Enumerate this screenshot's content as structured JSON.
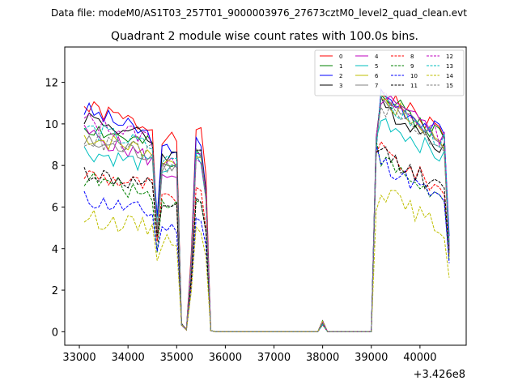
{
  "figure": {
    "header": "Data file: modeM0/AS1T03_257T01_9000003976_27673cztM0_level2_quad_clean.evt",
    "title": "Quadrant 2 module wise count rates with 100.0s bins.",
    "x_offset_label": "+3.426e8"
  },
  "chart_data": {
    "type": "line",
    "title": "Quadrant 2 module wise count rates with 100.0s bins.",
    "xlabel": "",
    "ylabel": "",
    "x_offset": 342600000,
    "xlim": [
      32700,
      40950
    ],
    "ylim": [
      -0.65,
      13.7
    ],
    "xticks": [
      33000,
      34000,
      35000,
      36000,
      37000,
      38000,
      39000,
      40000
    ],
    "xtick_labels": [
      "33000",
      "34000",
      "35000",
      "36000",
      "37000",
      "38000",
      "39000",
      "40000"
    ],
    "yticks": [
      0,
      2,
      4,
      6,
      8,
      10,
      12
    ],
    "ytick_labels": [
      "0",
      "2",
      "4",
      "6",
      "8",
      "10",
      "12"
    ],
    "grid": false,
    "legend_position": "top-right",
    "legend_columns": 4,
    "segments": [
      {
        "x_start": 33100,
        "x_end": 34600
      },
      {
        "x_start": 34600,
        "x_end": 35100
      },
      {
        "x_start": 35200,
        "x_end": 35700
      },
      {
        "x_start": 35800,
        "x_end": 35900
      },
      {
        "x_start": 36000,
        "x_end": 39000
      },
      {
        "x_start": 39100,
        "x_end": 40600
      }
    ],
    "series": [
      {
        "name": "0",
        "color": "#ff0000",
        "dash": "solid",
        "levels": [
          10.8,
          9.8,
          9.3,
          9.9,
          9.0,
          10.7
        ],
        "last": 4.2
      },
      {
        "name": "1",
        "color": "#008000",
        "dash": "solid",
        "levels": [
          9.9,
          8.9,
          7.9,
          8.8,
          9.0,
          10.5
        ],
        "last": 4.0
      },
      {
        "name": "2",
        "color": "#0000ff",
        "dash": "solid",
        "levels": [
          10.7,
          9.4,
          8.8,
          9.2,
          9.1,
          10.6
        ],
        "last": 4.6
      },
      {
        "name": "3",
        "color": "#000000",
        "dash": "solid",
        "levels": [
          10.4,
          9.2,
          8.5,
          8.9,
          9.0,
          10.0
        ],
        "last": 3.9
      },
      {
        "name": "4",
        "color": "#bf00bf",
        "dash": "solid",
        "levels": [
          9.6,
          8.3,
          7.6,
          8.6,
          9.2,
          10.4
        ],
        "last": 4.0
      },
      {
        "name": "5",
        "color": "#00bfbf",
        "dash": "solid",
        "levels": [
          8.7,
          8.0,
          7.8,
          8.4,
          9.2,
          9.3
        ],
        "last": 4.2
      },
      {
        "name": "6",
        "color": "#bfbf00",
        "dash": "solid",
        "levels": [
          9.4,
          8.7,
          8.2,
          8.6,
          9.0,
          10.3
        ],
        "last": 3.6
      },
      {
        "name": "7",
        "color": "#808080",
        "dash": "solid",
        "levels": [
          9.1,
          8.5,
          8.0,
          8.8,
          9.1,
          10.1
        ],
        "last": 3.9
      },
      {
        "name": "8",
        "color": "#ff0000",
        "dash": "dashed",
        "levels": [
          7.6,
          7.0,
          6.4,
          6.8,
          8.9,
          7.6
        ],
        "last": 3.7
      },
      {
        "name": "9",
        "color": "#008000",
        "dash": "dashed",
        "levels": [
          7.4,
          6.6,
          6.2,
          6.5,
          8.9,
          7.1
        ],
        "last": 3.4
      },
      {
        "name": "10",
        "color": "#0000ff",
        "dash": "dashed",
        "levels": [
          6.4,
          5.7,
          5.0,
          5.5,
          8.8,
          7.0
        ],
        "last": 3.3
      },
      {
        "name": "11",
        "color": "#000000",
        "dash": "dashed",
        "levels": [
          7.7,
          6.9,
          6.1,
          6.3,
          8.6,
          7.6
        ],
        "last": 3.8
      },
      {
        "name": "12",
        "color": "#bf00bf",
        "dash": "dashed",
        "levels": [
          10.2,
          9.3,
          8.1,
          8.5,
          9.1,
          10.4
        ],
        "last": 4.1
      },
      {
        "name": "13",
        "color": "#00bfbf",
        "dash": "dashed",
        "levels": [
          9.8,
          8.9,
          8.3,
          8.7,
          9.0,
          10.2
        ],
        "last": 4.2
      },
      {
        "name": "14",
        "color": "#bfbf00",
        "dash": "dashed",
        "levels": [
          5.5,
          5.0,
          4.4,
          4.9,
          6.2,
          5.8
        ],
        "last": 2.6
      },
      {
        "name": "15",
        "color": "#808080",
        "dash": "dashed",
        "levels": [
          9.3,
          8.6,
          7.9,
          8.5,
          9.0,
          10.0
        ],
        "last": 3.8
      }
    ],
    "notes_shape": {
      "drop_at_34600": 4.4,
      "gap_dips": [
        [
          35100,
          0.35
        ],
        [
          35200,
          0.1
        ]
      ],
      "zero_run": [
        36000,
        39000
      ],
      "blip_at_38000": 0.55
    }
  }
}
